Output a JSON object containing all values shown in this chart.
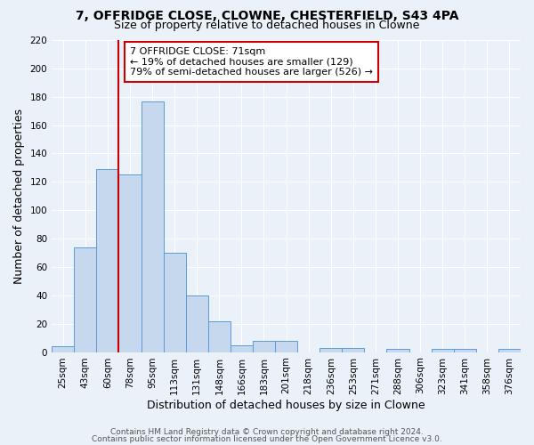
{
  "title": "7, OFFRIDGE CLOSE, CLOWNE, CHESTERFIELD, S43 4PA",
  "subtitle": "Size of property relative to detached houses in Clowne",
  "xlabel": "Distribution of detached houses by size in Clowne",
  "ylabel": "Number of detached properties",
  "bin_labels": [
    "25sqm",
    "43sqm",
    "60sqm",
    "78sqm",
    "95sqm",
    "113sqm",
    "131sqm",
    "148sqm",
    "166sqm",
    "183sqm",
    "201sqm",
    "218sqm",
    "236sqm",
    "253sqm",
    "271sqm",
    "288sqm",
    "306sqm",
    "323sqm",
    "341sqm",
    "358sqm",
    "376sqm"
  ],
  "bar_heights": [
    4,
    74,
    129,
    125,
    177,
    70,
    40,
    22,
    5,
    8,
    8,
    0,
    3,
    3,
    0,
    2,
    0,
    2,
    2,
    0,
    2
  ],
  "bar_color": "#c5d8ed",
  "bar_edge_color": "#5b9bd5",
  "vline_bin_index": 3.17,
  "vline_color": "#cc0000",
  "annotation_text": "7 OFFRIDGE CLOSE: 71sqm\n← 19% of detached houses are smaller (129)\n79% of semi-detached houses are larger (526) →",
  "annotation_box_color": "#ffffff",
  "annotation_box_edge": "#cc0000",
  "ylim": [
    0,
    220
  ],
  "yticks": [
    0,
    20,
    40,
    60,
    80,
    100,
    120,
    140,
    160,
    180,
    200,
    220
  ],
  "footer1": "Contains HM Land Registry data © Crown copyright and database right 2024.",
  "footer2": "Contains public sector information licensed under the Open Government Licence v3.0.",
  "background_color": "#eaf1f9",
  "grid_color": "#ffffff",
  "title_fontsize": 10,
  "subtitle_fontsize": 9,
  "axis_label_fontsize": 9,
  "tick_fontsize": 7.5,
  "footer_fontsize": 6.5,
  "annotation_fontsize": 8
}
